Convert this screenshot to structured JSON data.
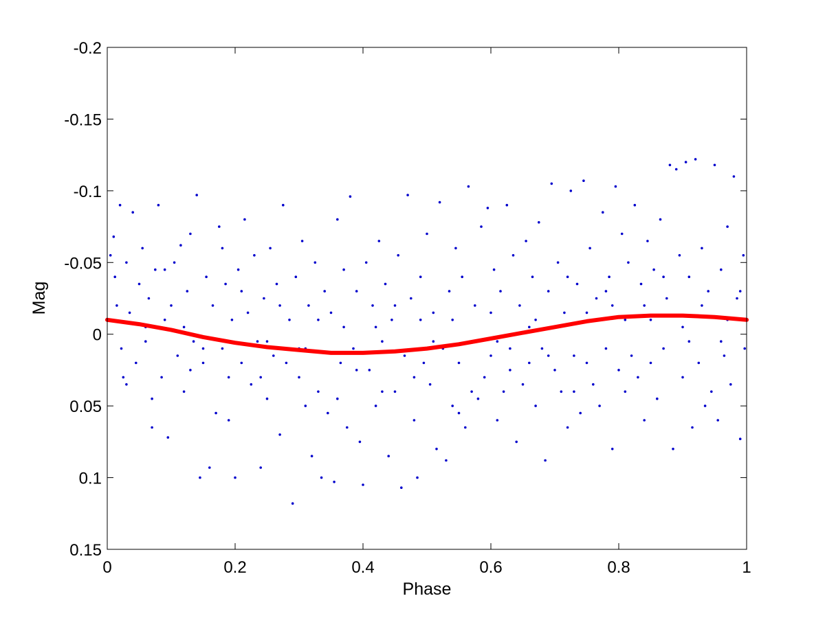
{
  "chart_data": {
    "type": "scatter",
    "xlabel": "Phase",
    "ylabel": "Mag",
    "xlim": [
      0,
      1
    ],
    "ylim": [
      -0.2,
      0.15
    ],
    "y_reversed": true,
    "x_ticks": [
      0,
      0.2,
      0.4,
      0.6,
      0.8,
      1
    ],
    "x_tick_labels": [
      "0",
      "0.2",
      "0.4",
      "0.6",
      "0.8",
      "1"
    ],
    "y_ticks": [
      -0.2,
      -0.15,
      -0.1,
      -0.05,
      0,
      0.05,
      0.1,
      0.15
    ],
    "y_tick_labels": [
      "-0.2",
      "-0.15",
      "-0.1",
      "-0.05",
      "0",
      "0.05",
      "0.1",
      "0.15"
    ],
    "grid": false,
    "series": [
      {
        "kind": "scatter",
        "color": "#0000cc",
        "points": [
          [
            0.005,
            -0.055
          ],
          [
            0.01,
            -0.068
          ],
          [
            0.012,
            -0.04
          ],
          [
            0.015,
            -0.02
          ],
          [
            0.02,
            -0.09
          ],
          [
            0.022,
            0.01
          ],
          [
            0.025,
            0.03
          ],
          [
            0.03,
            -0.05
          ],
          [
            0.035,
            -0.015
          ],
          [
            0.04,
            -0.085
          ],
          [
            0.045,
            0.02
          ],
          [
            0.05,
            -0.035
          ],
          [
            0.055,
            -0.06
          ],
          [
            0.06,
            0.005
          ],
          [
            0.065,
            -0.025
          ],
          [
            0.07,
            0.065
          ],
          [
            0.075,
            -0.045
          ],
          [
            0.08,
            -0.09
          ],
          [
            0.085,
            0.03
          ],
          [
            0.09,
            -0.01
          ],
          [
            0.095,
            0.072
          ],
          [
            0.1,
            -0.02
          ],
          [
            0.105,
            -0.05
          ],
          [
            0.11,
            0.015
          ],
          [
            0.115,
            -0.062
          ],
          [
            0.12,
            0.04
          ],
          [
            0.125,
            -0.03
          ],
          [
            0.13,
            -0.07
          ],
          [
            0.135,
            0.005
          ],
          [
            0.14,
            -0.097
          ],
          [
            0.145,
            0.1
          ],
          [
            0.15,
            0.02
          ],
          [
            0.155,
            -0.04
          ],
          [
            0.16,
            0.093
          ],
          [
            0.165,
            -0.02
          ],
          [
            0.17,
            0.055
          ],
          [
            0.175,
            -0.075
          ],
          [
            0.18,
            0.01
          ],
          [
            0.185,
            -0.035
          ],
          [
            0.19,
            0.03
          ],
          [
            0.195,
            -0.01
          ],
          [
            0.2,
            0.1
          ],
          [
            0.205,
            -0.045
          ],
          [
            0.21,
            0.02
          ],
          [
            0.215,
            -0.08
          ],
          [
            0.22,
            -0.015
          ],
          [
            0.225,
            0.035
          ],
          [
            0.23,
            -0.055
          ],
          [
            0.235,
            0.005
          ],
          [
            0.24,
            0.093
          ],
          [
            0.245,
            -0.025
          ],
          [
            0.25,
            0.045
          ],
          [
            0.255,
            -0.06
          ],
          [
            0.26,
            0.015
          ],
          [
            0.265,
            -0.035
          ],
          [
            0.27,
            0.07
          ],
          [
            0.275,
            -0.09
          ],
          [
            0.28,
            0.02
          ],
          [
            0.285,
            -0.01
          ],
          [
            0.29,
            0.118
          ],
          [
            0.295,
            -0.04
          ],
          [
            0.3,
            0.03
          ],
          [
            0.305,
            -0.065
          ],
          [
            0.31,
            0.01
          ],
          [
            0.315,
            -0.02
          ],
          [
            0.32,
            0.085
          ],
          [
            0.325,
            -0.05
          ],
          [
            0.33,
            0.04
          ],
          [
            0.335,
            0.1
          ],
          [
            0.34,
            -0.03
          ],
          [
            0.345,
            0.055
          ],
          [
            0.35,
            -0.015
          ],
          [
            0.355,
            0.103
          ],
          [
            0.36,
            -0.08
          ],
          [
            0.365,
            0.02
          ],
          [
            0.37,
            -0.045
          ],
          [
            0.375,
            0.065
          ],
          [
            0.38,
            -0.096
          ],
          [
            0.385,
            0.01
          ],
          [
            0.39,
            -0.03
          ],
          [
            0.395,
            0.075
          ],
          [
            0.4,
            0.105
          ],
          [
            0.405,
            -0.05
          ],
          [
            0.41,
            0.025
          ],
          [
            0.415,
            -0.02
          ],
          [
            0.42,
            0.05
          ],
          [
            0.425,
            -0.065
          ],
          [
            0.43,
            0.005
          ],
          [
            0.435,
            -0.035
          ],
          [
            0.44,
            0.085
          ],
          [
            0.445,
            -0.01
          ],
          [
            0.45,
            0.04
          ],
          [
            0.455,
            -0.055
          ],
          [
            0.46,
            0.107
          ],
          [
            0.465,
            0.015
          ],
          [
            0.47,
            -0.097
          ],
          [
            0.475,
            -0.025
          ],
          [
            0.48,
            0.06
          ],
          [
            0.485,
            0.1
          ],
          [
            0.49,
            -0.04
          ],
          [
            0.495,
            0.02
          ],
          [
            0.5,
            -0.07
          ],
          [
            0.505,
            0.035
          ],
          [
            0.51,
            -0.015
          ],
          [
            0.515,
            0.08
          ],
          [
            0.52,
            -0.092
          ],
          [
            0.525,
            0.01
          ],
          [
            0.53,
            0.088
          ],
          [
            0.535,
            -0.03
          ],
          [
            0.54,
            0.05
          ],
          [
            0.545,
            -0.06
          ],
          [
            0.55,
            0.02
          ],
          [
            0.555,
            -0.04
          ],
          [
            0.56,
            0.065
          ],
          [
            0.565,
            -0.103
          ],
          [
            0.57,
            0.005
          ],
          [
            0.575,
            -0.02
          ],
          [
            0.58,
            0.045
          ],
          [
            0.585,
            -0.075
          ],
          [
            0.59,
            0.03
          ],
          [
            0.595,
            -0.088
          ],
          [
            0.6,
            0.015
          ],
          [
            0.605,
            -0.045
          ],
          [
            0.61,
            0.06
          ],
          [
            0.615,
            -0.03
          ],
          [
            0.62,
            0.04
          ],
          [
            0.625,
            -0.09
          ],
          [
            0.63,
            0.01
          ],
          [
            0.635,
            -0.055
          ],
          [
            0.64,
            0.075
          ],
          [
            0.645,
            -0.02
          ],
          [
            0.65,
            0.035
          ],
          [
            0.655,
            -0.065
          ],
          [
            0.66,
            0.02
          ],
          [
            0.665,
            -0.04
          ],
          [
            0.67,
            0.05
          ],
          [
            0.675,
            -0.078
          ],
          [
            0.68,
            0.01
          ],
          [
            0.685,
            0.088
          ],
          [
            0.69,
            -0.03
          ],
          [
            0.695,
            -0.105
          ],
          [
            0.7,
            0.025
          ],
          [
            0.705,
            -0.05
          ],
          [
            0.71,
            0.04
          ],
          [
            0.715,
            -0.015
          ],
          [
            0.72,
            0.065
          ],
          [
            0.725,
            -0.1
          ],
          [
            0.73,
            0.015
          ],
          [
            0.735,
            -0.035
          ],
          [
            0.74,
            0.055
          ],
          [
            0.745,
            -0.107
          ],
          [
            0.75,
            0.02
          ],
          [
            0.755,
            -0.06
          ],
          [
            0.76,
            0.035
          ],
          [
            0.765,
            -0.025
          ],
          [
            0.77,
            0.05
          ],
          [
            0.775,
            -0.085
          ],
          [
            0.78,
            0.01
          ],
          [
            0.785,
            -0.04
          ],
          [
            0.79,
            0.08
          ],
          [
            0.795,
            -0.103
          ],
          [
            0.8,
            0.025
          ],
          [
            0.805,
            -0.07
          ],
          [
            0.81,
            0.04
          ],
          [
            0.815,
            -0.05
          ],
          [
            0.82,
            0.015
          ],
          [
            0.825,
            -0.09
          ],
          [
            0.83,
            0.03
          ],
          [
            0.835,
            -0.035
          ],
          [
            0.84,
            0.06
          ],
          [
            0.845,
            -0.065
          ],
          [
            0.85,
            0.02
          ],
          [
            0.855,
            -0.045
          ],
          [
            0.86,
            0.045
          ],
          [
            0.865,
            -0.08
          ],
          [
            0.87,
            0.01
          ],
          [
            0.875,
            -0.025
          ],
          [
            0.88,
            -0.118
          ],
          [
            0.885,
            0.08
          ],
          [
            0.89,
            -0.115
          ],
          [
            0.895,
            -0.055
          ],
          [
            0.9,
            0.03
          ],
          [
            0.905,
            -0.12
          ],
          [
            0.91,
            -0.04
          ],
          [
            0.915,
            0.065
          ],
          [
            0.92,
            -0.122
          ],
          [
            0.925,
            0.02
          ],
          [
            0.93,
            -0.06
          ],
          [
            0.935,
            0.05
          ],
          [
            0.94,
            -0.03
          ],
          [
            0.945,
            0.04
          ],
          [
            0.95,
            -0.118
          ],
          [
            0.955,
            0.06
          ],
          [
            0.96,
            -0.045
          ],
          [
            0.965,
            0.015
          ],
          [
            0.97,
            -0.075
          ],
          [
            0.975,
            0.035
          ],
          [
            0.98,
            -0.11
          ],
          [
            0.985,
            -0.025
          ],
          [
            0.99,
            0.073
          ],
          [
            0.995,
            -0.055
          ],
          [
            0.997,
            0.01
          ],
          [
            0.03,
            0.035
          ],
          [
            0.06,
            -0.005
          ],
          [
            0.09,
            -0.045
          ],
          [
            0.12,
            -0.005
          ],
          [
            0.15,
            0.01
          ],
          [
            0.18,
            -0.06
          ],
          [
            0.21,
            -0.03
          ],
          [
            0.24,
            0.03
          ],
          [
            0.27,
            -0.02
          ],
          [
            0.3,
            0.01
          ],
          [
            0.33,
            -0.01
          ],
          [
            0.36,
            0.045
          ],
          [
            0.39,
            0.025
          ],
          [
            0.42,
            -0.005
          ],
          [
            0.45,
            -0.02
          ],
          [
            0.48,
            0.03
          ],
          [
            0.51,
            0.005
          ],
          [
            0.54,
            -0.01
          ],
          [
            0.57,
            0.04
          ],
          [
            0.6,
            -0.015
          ],
          [
            0.63,
            0.025
          ],
          [
            0.66,
            -0.005
          ],
          [
            0.69,
            0.015
          ],
          [
            0.72,
            -0.04
          ],
          [
            0.75,
            -0.015
          ],
          [
            0.78,
            -0.03
          ],
          [
            0.81,
            -0.01
          ],
          [
            0.84,
            -0.02
          ],
          [
            0.87,
            -0.04
          ],
          [
            0.9,
            -0.005
          ],
          [
            0.93,
            -0.02
          ],
          [
            0.96,
            0.005
          ],
          [
            0.99,
            -0.03
          ],
          [
            0.07,
            0.045
          ],
          [
            0.13,
            0.025
          ],
          [
            0.19,
            0.06
          ],
          [
            0.25,
            0.005
          ],
          [
            0.31,
            0.05
          ],
          [
            0.37,
            -0.005
          ],
          [
            0.43,
            0.04
          ],
          [
            0.49,
            -0.01
          ],
          [
            0.55,
            0.055
          ],
          [
            0.61,
            0.005
          ],
          [
            0.67,
            -0.01
          ],
          [
            0.73,
            0.04
          ],
          [
            0.79,
            -0.02
          ],
          [
            0.85,
            -0.01
          ],
          [
            0.91,
            0.005
          ],
          [
            0.97,
            -0.01
          ]
        ]
      },
      {
        "kind": "line",
        "color": "#ff0000",
        "model": "sinusoid",
        "curve": [
          [
            0,
            -0.01
          ],
          [
            0.05,
            -0.007
          ],
          [
            0.1,
            -0.003
          ],
          [
            0.15,
            0.002
          ],
          [
            0.2,
            0.006
          ],
          [
            0.25,
            0.009
          ],
          [
            0.3,
            0.011
          ],
          [
            0.35,
            0.013
          ],
          [
            0.4,
            0.013
          ],
          [
            0.45,
            0.012
          ],
          [
            0.5,
            0.01
          ],
          [
            0.55,
            0.007
          ],
          [
            0.6,
            0.003
          ],
          [
            0.65,
            -0.001
          ],
          [
            0.7,
            -0.005
          ],
          [
            0.75,
            -0.009
          ],
          [
            0.8,
            -0.012
          ],
          [
            0.85,
            -0.013
          ],
          [
            0.9,
            -0.013
          ],
          [
            0.95,
            -0.012
          ],
          [
            1,
            -0.01
          ]
        ]
      }
    ]
  }
}
